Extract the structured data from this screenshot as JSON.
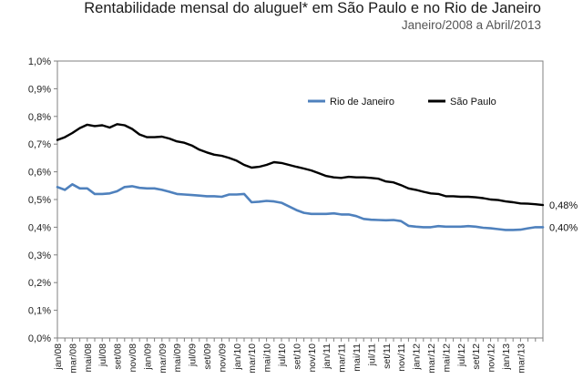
{
  "chart_data": {
    "type": "line",
    "title": "Rentabilidade mensal do aluguel* em São Paulo e no Rio de Janeiro",
    "subtitle": "Janeiro/2008 a Abril/2013",
    "ylim": [
      0.0,
      1.0
    ],
    "y_ticks": [
      "0,0%",
      "0,1%",
      "0,2%",
      "0,3%",
      "0,4%",
      "0,5%",
      "0,6%",
      "0,7%",
      "0,8%",
      "0,9%",
      "1,0%"
    ],
    "x_ticks": [
      "jan/08",
      "mar/08",
      "mai/08",
      "jul/08",
      "set/08",
      "nov/08",
      "jan/09",
      "mar/09",
      "mai/09",
      "jul/09",
      "set/09",
      "nov/09",
      "jan/10",
      "mar/10",
      "mai/10",
      "jul/10",
      "set/10",
      "nov/10",
      "jan/11",
      "mar/11",
      "mai/11",
      "jul/11",
      "set/11",
      "nov/11",
      "jan/12",
      "mar/12",
      "mai/12",
      "jul/12",
      "set/12",
      "nov/12",
      "jan/13",
      "mar/13"
    ],
    "grid": false,
    "legend_position": "top-right",
    "series": [
      {
        "name": "Rio de Janeiro",
        "color": "#4f81bd",
        "end_label": "0,40%",
        "values": [
          0.545,
          0.535,
          0.555,
          0.54,
          0.54,
          0.52,
          0.52,
          0.522,
          0.53,
          0.545,
          0.548,
          0.542,
          0.54,
          0.54,
          0.535,
          0.528,
          0.52,
          0.518,
          0.516,
          0.514,
          0.512,
          0.512,
          0.51,
          0.518,
          0.518,
          0.52,
          0.49,
          0.492,
          0.495,
          0.493,
          0.488,
          0.475,
          0.462,
          0.452,
          0.448,
          0.448,
          0.448,
          0.45,
          0.446,
          0.446,
          0.44,
          0.43,
          0.427,
          0.426,
          0.425,
          0.426,
          0.422,
          0.405,
          0.402,
          0.4,
          0.4,
          0.404,
          0.402,
          0.402,
          0.402,
          0.404,
          0.402,
          0.398,
          0.396,
          0.393,
          0.39,
          0.39,
          0.391,
          0.396,
          0.4,
          0.4
        ]
      },
      {
        "name": "São Paulo",
        "color": "#000000",
        "end_label": "0,48%",
        "values": [
          0.715,
          0.725,
          0.74,
          0.758,
          0.77,
          0.765,
          0.768,
          0.76,
          0.772,
          0.768,
          0.755,
          0.735,
          0.725,
          0.725,
          0.727,
          0.72,
          0.71,
          0.705,
          0.695,
          0.68,
          0.67,
          0.662,
          0.658,
          0.65,
          0.64,
          0.625,
          0.615,
          0.618,
          0.625,
          0.635,
          0.632,
          0.625,
          0.618,
          0.612,
          0.605,
          0.595,
          0.585,
          0.58,
          0.578,
          0.582,
          0.58,
          0.58,
          0.578,
          0.575,
          0.565,
          0.562,
          0.552,
          0.54,
          0.535,
          0.528,
          0.522,
          0.52,
          0.512,
          0.512,
          0.51,
          0.51,
          0.508,
          0.505,
          0.5,
          0.498,
          0.493,
          0.49,
          0.486,
          0.485,
          0.483,
          0.48
        ]
      }
    ]
  }
}
